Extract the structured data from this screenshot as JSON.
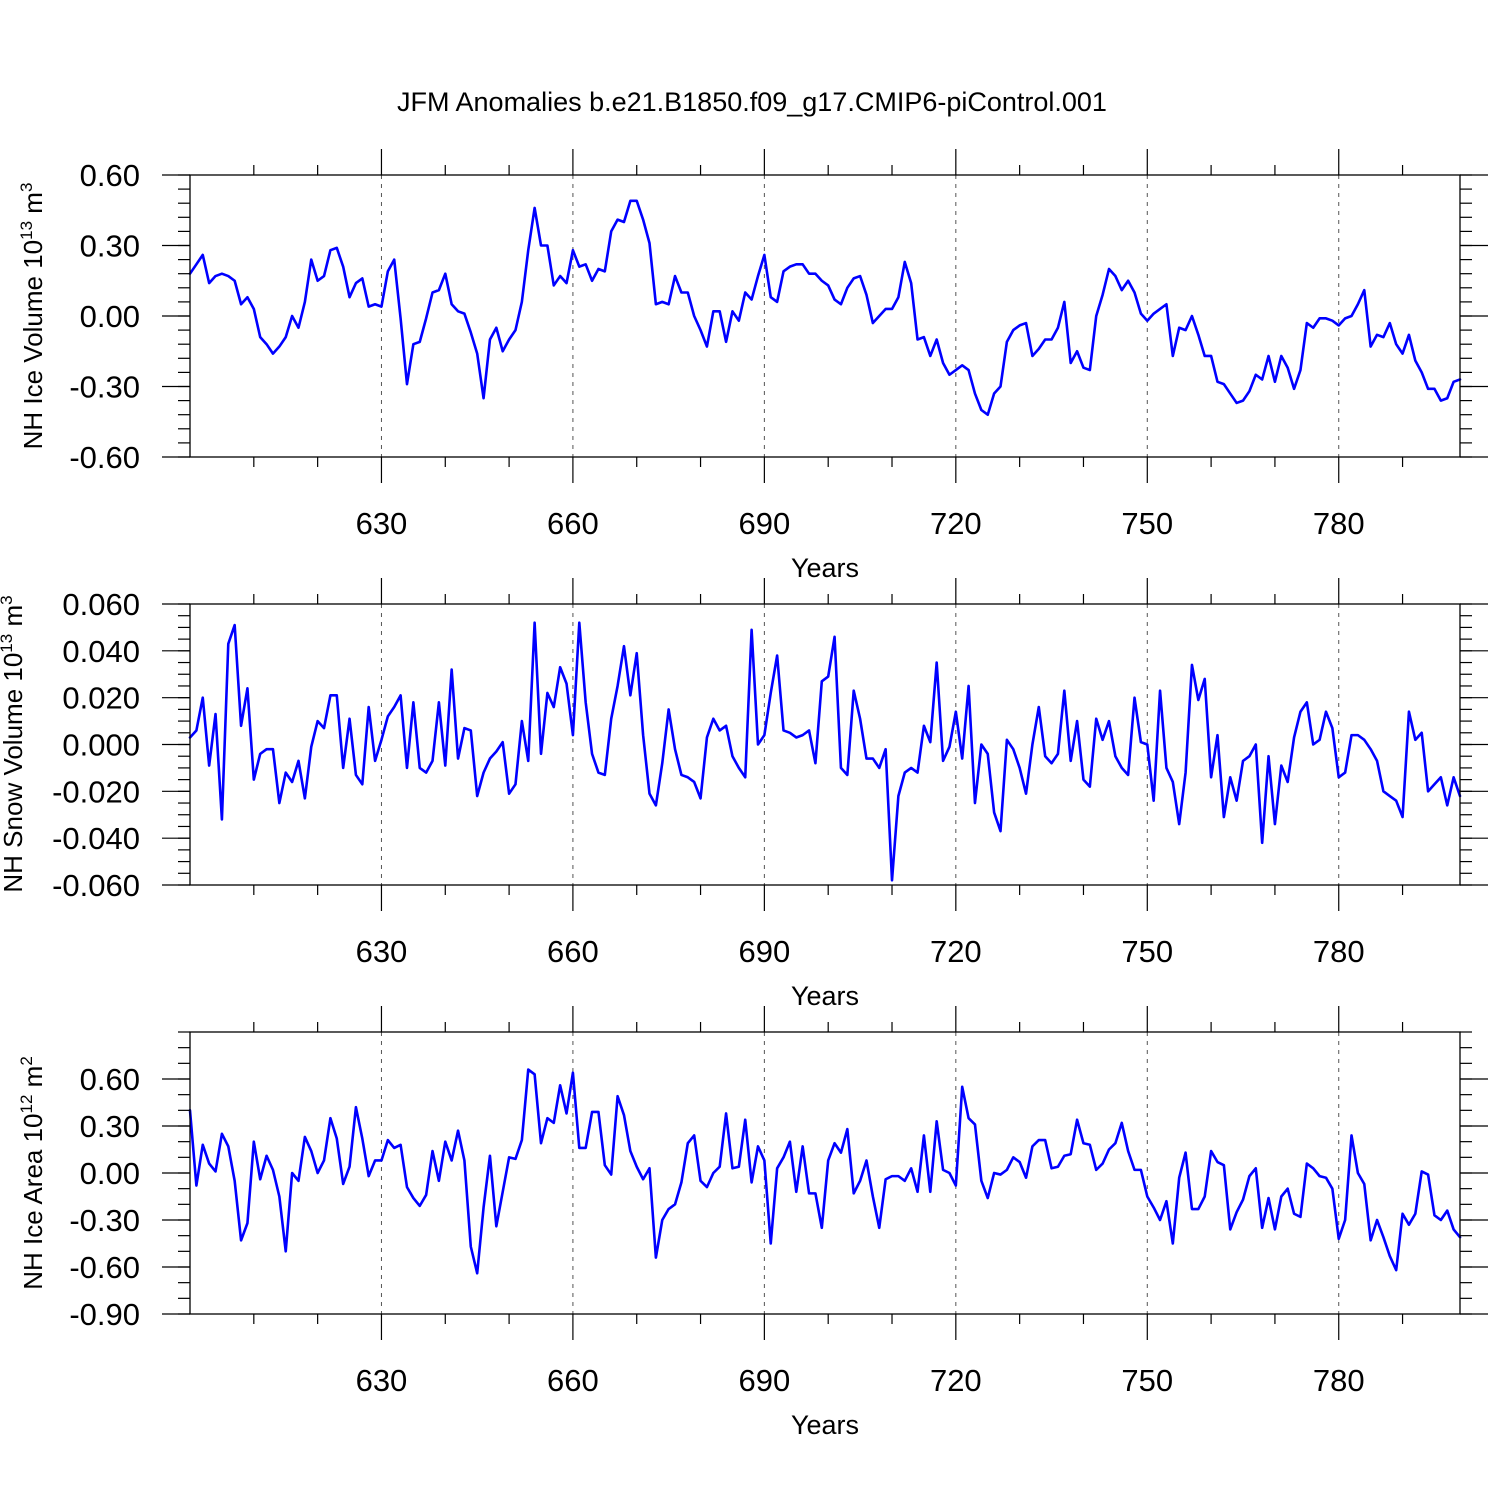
{
  "title": "JFM Anomalies b.e21.B1850.f09_g17.CMIP6-piControl.001",
  "line_color": "#0000ff",
  "chart_data": [
    {
      "type": "line",
      "name": "ice-volume",
      "ylabel_main": "NH Ice Volume 10",
      "ylabel_sup1": "13",
      "ylabel_mid": " m",
      "ylabel_sup2": "3",
      "xlabel": "Years",
      "xlim": [
        600,
        799
      ],
      "ylim": [
        -0.6,
        0.6
      ],
      "x_ticks": [
        630,
        660,
        690,
        720,
        750,
        780
      ],
      "x_tick_labels": [
        "630",
        "660",
        "690",
        "720",
        "750",
        "780"
      ],
      "y_ticks": [
        -0.6,
        -0.3,
        0.0,
        0.3,
        0.6
      ],
      "y_tick_labels": [
        "-0.60",
        "-0.30",
        "0.00",
        "0.30",
        "0.60"
      ],
      "y_minor_step": 0.06,
      "grid": "vertical dashed at x ticks",
      "x_start": 600,
      "values": [
        0.18,
        0.22,
        0.26,
        0.14,
        0.17,
        0.18,
        0.17,
        0.15,
        0.05,
        0.08,
        0.03,
        -0.09,
        -0.12,
        -0.16,
        -0.13,
        -0.09,
        0.0,
        -0.05,
        0.06,
        0.24,
        0.15,
        0.17,
        0.28,
        0.29,
        0.21,
        0.08,
        0.14,
        0.16,
        0.04,
        0.05,
        0.04,
        0.19,
        0.24,
        -0.01,
        -0.29,
        -0.12,
        -0.11,
        -0.01,
        0.1,
        0.11,
        0.18,
        0.05,
        0.02,
        0.01,
        -0.07,
        -0.16,
        -0.35,
        -0.1,
        -0.05,
        -0.15,
        -0.1,
        -0.06,
        0.06,
        0.28,
        0.46,
        0.3,
        0.3,
        0.13,
        0.17,
        0.14,
        0.28,
        0.21,
        0.22,
        0.15,
        0.2,
        0.19,
        0.36,
        0.41,
        0.4,
        0.49,
        0.49,
        0.41,
        0.31,
        0.05,
        0.06,
        0.05,
        0.17,
        0.1,
        0.1,
        0.0,
        -0.06,
        -0.13,
        0.02,
        0.02,
        -0.11,
        0.02,
        -0.02,
        0.1,
        0.07,
        0.17,
        0.26,
        0.08,
        0.06,
        0.19,
        0.21,
        0.22,
        0.22,
        0.18,
        0.18,
        0.15,
        0.13,
        0.07,
        0.05,
        0.12,
        0.16,
        0.17,
        0.09,
        -0.03,
        0.0,
        0.03,
        0.03,
        0.08,
        0.23,
        0.14,
        -0.1,
        -0.09,
        -0.17,
        -0.1,
        -0.2,
        -0.25,
        -0.23,
        -0.21,
        -0.23,
        -0.33,
        -0.4,
        -0.42,
        -0.33,
        -0.3,
        -0.11,
        -0.06,
        -0.04,
        -0.03,
        -0.17,
        -0.14,
        -0.1,
        -0.1,
        -0.05,
        0.06,
        -0.2,
        -0.15,
        -0.22,
        -0.23,
        0.0,
        0.09,
        0.2,
        0.17,
        0.11,
        0.15,
        0.1,
        0.01,
        -0.02,
        0.01,
        0.03,
        0.05,
        -0.17,
        -0.05,
        -0.06,
        0.0,
        -0.08,
        -0.17,
        -0.17,
        -0.28,
        -0.29,
        -0.33,
        -0.37,
        -0.36,
        -0.32,
        -0.25,
        -0.27,
        -0.17,
        -0.28,
        -0.17,
        -0.22,
        -0.31,
        -0.23,
        -0.03,
        -0.05,
        -0.01,
        -0.01,
        -0.02,
        -0.04,
        -0.01,
        0.0,
        0.05,
        0.11,
        -0.13,
        -0.08,
        -0.09,
        -0.03,
        -0.12,
        -0.16,
        -0.08,
        -0.19,
        -0.24,
        -0.31,
        -0.31,
        -0.36,
        -0.35,
        -0.28,
        -0.27
      ]
    },
    {
      "type": "line",
      "name": "snow-volume",
      "ylabel_main": "NH Snow Volume 10",
      "ylabel_sup1": "13",
      "ylabel_mid": " m",
      "ylabel_sup2": "3",
      "xlabel": "Years",
      "xlim": [
        600,
        799
      ],
      "ylim": [
        -0.06,
        0.06
      ],
      "x_ticks": [
        630,
        660,
        690,
        720,
        750,
        780
      ],
      "x_tick_labels": [
        "630",
        "660",
        "690",
        "720",
        "750",
        "780"
      ],
      "y_ticks": [
        -0.06,
        -0.04,
        -0.02,
        0.0,
        0.02,
        0.04,
        0.06
      ],
      "y_tick_labels": [
        "-0.060",
        "-0.040",
        "-0.020",
        "0.000",
        "0.020",
        "0.040",
        "0.060"
      ],
      "y_minor_step": 0.005,
      "grid": "vertical dashed at x ticks",
      "x_start": 600,
      "values": [
        0.003,
        0.006,
        0.02,
        -0.009,
        0.013,
        -0.032,
        0.043,
        0.051,
        0.008,
        0.024,
        -0.015,
        -0.004,
        -0.002,
        -0.002,
        -0.025,
        -0.012,
        -0.016,
        -0.007,
        -0.023,
        -0.001,
        0.01,
        0.007,
        0.021,
        0.021,
        -0.01,
        0.011,
        -0.013,
        -0.017,
        0.016,
        -0.007,
        0.002,
        0.012,
        0.016,
        0.021,
        -0.01,
        0.018,
        -0.01,
        -0.012,
        -0.007,
        0.018,
        -0.009,
        0.032,
        -0.006,
        0.007,
        0.006,
        -0.022,
        -0.012,
        -0.006,
        -0.003,
        0.001,
        -0.021,
        -0.017,
        0.01,
        -0.007,
        0.052,
        -0.004,
        0.022,
        0.016,
        0.033,
        0.026,
        0.004,
        0.052,
        0.018,
        -0.004,
        -0.012,
        -0.013,
        0.011,
        0.025,
        0.042,
        0.021,
        0.039,
        0.004,
        -0.021,
        -0.026,
        -0.008,
        0.015,
        -0.002,
        -0.013,
        -0.014,
        -0.016,
        -0.023,
        0.003,
        0.011,
        0.006,
        0.008,
        -0.005,
        -0.01,
        -0.014,
        0.049,
        0.0,
        0.004,
        0.022,
        0.038,
        0.006,
        0.005,
        0.003,
        0.004,
        0.006,
        -0.008,
        0.027,
        0.029,
        0.046,
        -0.01,
        -0.013,
        0.023,
        0.011,
        -0.006,
        -0.006,
        -0.01,
        -0.002,
        -0.058,
        -0.022,
        -0.012,
        -0.01,
        -0.012,
        0.008,
        0.001,
        0.035,
        -0.007,
        -0.001,
        0.014,
        -0.006,
        0.025,
        -0.025,
        0.0,
        -0.004,
        -0.029,
        -0.037,
        0.002,
        -0.002,
        -0.01,
        -0.021,
        0.0,
        0.016,
        -0.005,
        -0.008,
        -0.004,
        0.023,
        -0.007,
        0.01,
        -0.015,
        -0.018,
        0.011,
        0.002,
        0.01,
        -0.005,
        -0.01,
        -0.013,
        0.02,
        0.001,
        0.0,
        -0.024,
        0.023,
        -0.01,
        -0.016,
        -0.034,
        -0.012,
        0.034,
        0.019,
        0.028,
        -0.014,
        0.004,
        -0.031,
        -0.014,
        -0.024,
        -0.007,
        -0.005,
        0.0,
        -0.042,
        -0.005,
        -0.034,
        -0.009,
        -0.016,
        0.003,
        0.014,
        0.018,
        0.0,
        0.002,
        0.014,
        0.007,
        -0.014,
        -0.012,
        0.004,
        0.004,
        0.002,
        -0.002,
        -0.007,
        -0.02,
        -0.022,
        -0.024,
        -0.031,
        0.014,
        0.002,
        0.005,
        -0.02,
        -0.017,
        -0.014,
        -0.026,
        -0.014,
        -0.022
      ]
    },
    {
      "type": "line",
      "name": "ice-area",
      "ylabel_main": "NH Ice Area 10",
      "ylabel_sup1": "12",
      "ylabel_mid": " m",
      "ylabel_sup2": "2",
      "xlabel": "Years",
      "xlim": [
        600,
        799
      ],
      "ylim": [
        -0.9,
        0.9
      ],
      "x_ticks": [
        630,
        660,
        690,
        720,
        750,
        780
      ],
      "x_tick_labels": [
        "630",
        "660",
        "690",
        "720",
        "750",
        "780"
      ],
      "y_ticks": [
        -0.9,
        -0.6,
        -0.3,
        0.0,
        0.3,
        0.6
      ],
      "y_tick_labels": [
        "-0.90",
        "-0.60",
        "-0.30",
        "0.00",
        "0.30",
        "0.60"
      ],
      "y_minor_step": 0.1,
      "grid": "vertical dashed at x ticks",
      "x_start": 600,
      "values": [
        0.4,
        -0.08,
        0.18,
        0.06,
        0.01,
        0.25,
        0.17,
        -0.05,
        -0.43,
        -0.32,
        0.2,
        -0.04,
        0.11,
        0.02,
        -0.15,
        -0.5,
        0.0,
        -0.05,
        0.23,
        0.14,
        0.0,
        0.08,
        0.35,
        0.22,
        -0.07,
        0.04,
        0.42,
        0.22,
        -0.02,
        0.08,
        0.08,
        0.21,
        0.16,
        0.18,
        -0.09,
        -0.16,
        -0.21,
        -0.14,
        0.14,
        -0.05,
        0.2,
        0.08,
        0.27,
        0.08,
        -0.47,
        -0.64,
        -0.22,
        0.11,
        -0.34,
        -0.12,
        0.1,
        0.09,
        0.21,
        0.66,
        0.63,
        0.19,
        0.35,
        0.32,
        0.56,
        0.38,
        0.64,
        0.16,
        0.16,
        0.39,
        0.39,
        0.05,
        -0.01,
        0.49,
        0.37,
        0.14,
        0.04,
        -0.04,
        0.03,
        -0.54,
        -0.3,
        -0.23,
        -0.2,
        -0.06,
        0.19,
        0.24,
        -0.05,
        -0.09,
        0.0,
        0.04,
        0.38,
        0.03,
        0.04,
        0.34,
        -0.06,
        0.17,
        0.08,
        -0.45,
        0.03,
        0.1,
        0.2,
        -0.12,
        0.17,
        -0.13,
        -0.13,
        -0.35,
        0.08,
        0.19,
        0.13,
        0.28,
        -0.13,
        -0.05,
        0.08,
        -0.15,
        -0.35,
        -0.04,
        -0.02,
        -0.02,
        -0.05,
        0.03,
        -0.12,
        0.24,
        -0.12,
        0.33,
        0.02,
        0.0,
        -0.08,
        0.55,
        0.35,
        0.31,
        -0.05,
        -0.16,
        0.0,
        -0.01,
        0.02,
        0.1,
        0.07,
        -0.03,
        0.17,
        0.21,
        0.21,
        0.03,
        0.04,
        0.11,
        0.12,
        0.34,
        0.19,
        0.18,
        0.02,
        0.06,
        0.15,
        0.19,
        0.32,
        0.14,
        0.02,
        0.02,
        -0.15,
        -0.22,
        -0.3,
        -0.18,
        -0.45,
        -0.03,
        0.13,
        -0.23,
        -0.23,
        -0.15,
        0.14,
        0.07,
        0.05,
        -0.36,
        -0.25,
        -0.17,
        -0.02,
        0.03,
        -0.35,
        -0.16,
        -0.36,
        -0.15,
        -0.1,
        -0.26,
        -0.28,
        0.06,
        0.03,
        -0.02,
        -0.03,
        -0.1,
        -0.42,
        -0.3,
        0.24,
        0.0,
        -0.07,
        -0.43,
        -0.3,
        -0.41,
        -0.53,
        -0.62,
        -0.26,
        -0.33,
        -0.26,
        0.01,
        -0.01,
        -0.27,
        -0.3,
        -0.24,
        -0.36,
        -0.41
      ]
    }
  ]
}
